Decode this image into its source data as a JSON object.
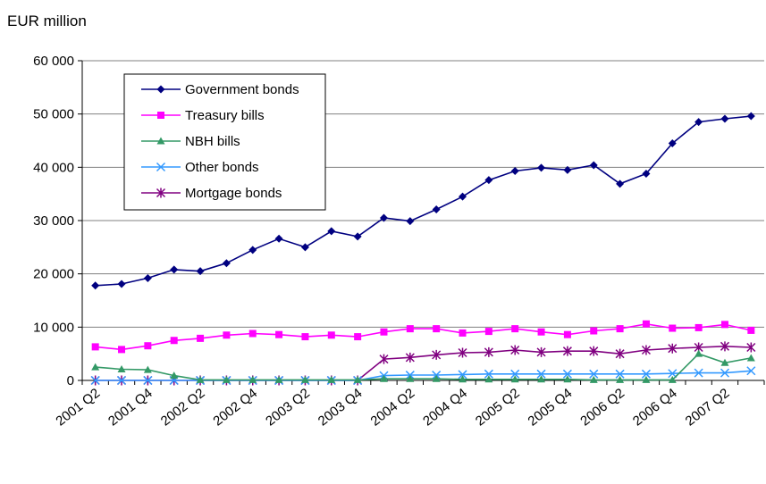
{
  "chart_data": {
    "type": "line",
    "title": "",
    "unit_label": "EUR million",
    "xlabel": "",
    "ylabel": "",
    "ylim": [
      0,
      60000
    ],
    "yticks": [
      0,
      10000,
      20000,
      30000,
      40000,
      50000,
      60000
    ],
    "ytick_labels": [
      "0",
      "10 000",
      "20 000",
      "30 000",
      "40 000",
      "50 000",
      "60 000"
    ],
    "grid": "horizontal",
    "legend_position": "top-left inside plot",
    "x": [
      "2001 Q2",
      "2001 Q3",
      "2001 Q4",
      "2002 Q1",
      "2002 Q2",
      "2002 Q3",
      "2002 Q4",
      "2003 Q1",
      "2003 Q2",
      "2003 Q3",
      "2003 Q4",
      "2004 Q1",
      "2004 Q2",
      "2004 Q3",
      "2004 Q4",
      "2005 Q1",
      "2005 Q2",
      "2005 Q3",
      "2005 Q4",
      "2006 Q1",
      "2006 Q2",
      "2006 Q3",
      "2006 Q4",
      "2007 Q1",
      "2007 Q2",
      "2007 Q3"
    ],
    "xtick_labels": [
      "2001 Q2",
      "2001 Q4",
      "2002 Q2",
      "2002 Q4",
      "2003 Q2",
      "2003 Q4",
      "2004 Q2",
      "2004 Q4",
      "2005 Q2",
      "2005 Q4",
      "2006 Q2",
      "2006 Q4",
      "2007 Q2"
    ],
    "series": [
      {
        "name": "Government bonds",
        "color": "#000080",
        "marker": "diamond",
        "values": [
          17800,
          18100,
          19200,
          20800,
          20500,
          22000,
          24500,
          26600,
          25000,
          28000,
          27000,
          30500,
          29900,
          32100,
          34500,
          37600,
          39300,
          39900,
          39500,
          40400,
          36900,
          38800,
          44500,
          48500,
          49100,
          49600
        ]
      },
      {
        "name": "Treasury bills",
        "color": "#FF00FF",
        "marker": "square",
        "values": [
          6300,
          5800,
          6500,
          7500,
          7900,
          8500,
          8800,
          8600,
          8200,
          8500,
          8200,
          9100,
          9700,
          9700,
          8900,
          9200,
          9700,
          9100,
          8600,
          9300,
          9700,
          10600,
          9800,
          9900,
          10500,
          9400
        ]
      },
      {
        "name": "NBH bills",
        "color": "#339966",
        "marker": "triangle",
        "values": [
          2500,
          2100,
          2000,
          900,
          100,
          100,
          100,
          100,
          100,
          100,
          100,
          300,
          300,
          300,
          200,
          200,
          200,
          200,
          200,
          100,
          100,
          100,
          100,
          5000,
          3300,
          4200
        ]
      },
      {
        "name": "Other bonds",
        "color": "#3399FF",
        "marker": "x",
        "values": [
          0,
          0,
          0,
          0,
          0,
          0,
          0,
          0,
          0,
          0,
          0,
          900,
          1000,
          1000,
          1100,
          1200,
          1200,
          1200,
          1200,
          1200,
          1200,
          1200,
          1300,
          1400,
          1400,
          1800
        ]
      },
      {
        "name": "Mortgage bonds",
        "color": "#800080",
        "marker": "star",
        "values": [
          0,
          0,
          0,
          0,
          0,
          0,
          0,
          0,
          0,
          0,
          0,
          4000,
          4300,
          4800,
          5200,
          5300,
          5700,
          5300,
          5500,
          5500,
          5000,
          5700,
          6000,
          6200,
          6400,
          6200
        ]
      }
    ]
  }
}
